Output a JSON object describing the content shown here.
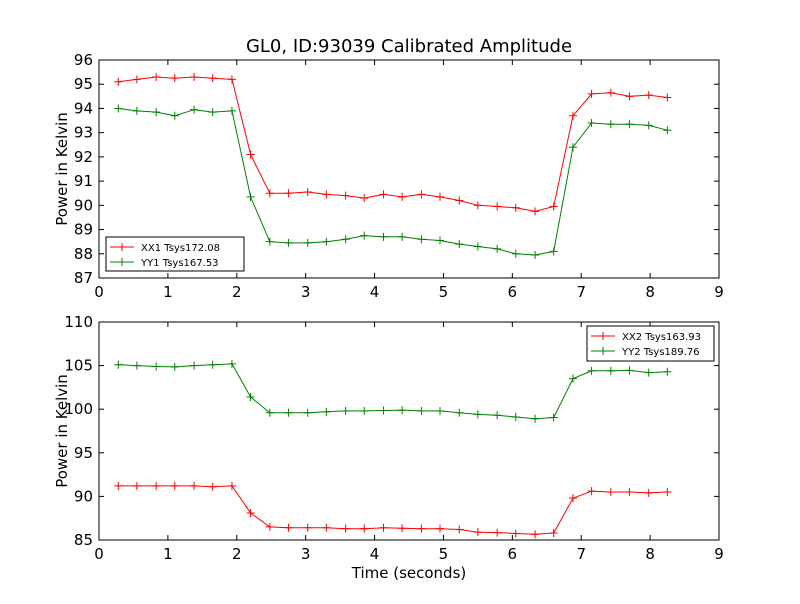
{
  "title": "GL0, ID:93039 Calibrated Amplitude",
  "colors": {
    "red": "#ff0000",
    "green": "#008000",
    "frame": "#000000",
    "background": "#ffffff"
  },
  "chart_data": [
    {
      "type": "line",
      "ylabel": "Power in Kelvin",
      "xlabel": "",
      "xlim": [
        0,
        9
      ],
      "ylim": [
        87,
        96
      ],
      "xticks": [
        "0",
        "1",
        "2",
        "3",
        "4",
        "5",
        "6",
        "7",
        "8",
        "9"
      ],
      "yticks": [
        "87",
        "88",
        "89",
        "90",
        "91",
        "92",
        "93",
        "94",
        "95",
        "96"
      ],
      "legend": "lower-left",
      "grid": false,
      "x": [
        0.28,
        0.55,
        0.83,
        1.1,
        1.38,
        1.65,
        1.93,
        2.2,
        2.48,
        2.75,
        3.03,
        3.3,
        3.58,
        3.85,
        4.13,
        4.4,
        4.68,
        4.95,
        5.23,
        5.5,
        5.78,
        6.05,
        6.33,
        6.6,
        6.88,
        7.15,
        7.43,
        7.7,
        7.98,
        8.25
      ],
      "series": [
        {
          "name": "XX1 Tsys172.08",
          "color": "#ff0000",
          "values": [
            95.1,
            95.2,
            95.3,
            95.25,
            95.3,
            95.25,
            95.2,
            92.1,
            90.5,
            90.5,
            90.55,
            90.45,
            90.4,
            90.3,
            90.45,
            90.35,
            90.45,
            90.35,
            90.2,
            90.0,
            89.95,
            89.9,
            89.75,
            89.95,
            93.7,
            94.6,
            94.65,
            94.5,
            94.55,
            94.45
          ]
        },
        {
          "name": "YY1 Tsys167.53",
          "color": "#008000",
          "values": [
            94.0,
            93.9,
            93.85,
            93.7,
            93.95,
            93.85,
            93.9,
            90.35,
            88.5,
            88.45,
            88.45,
            88.5,
            88.6,
            88.75,
            88.7,
            88.7,
            88.6,
            88.55,
            88.4,
            88.3,
            88.2,
            88.0,
            87.95,
            88.1,
            92.4,
            93.4,
            93.35,
            93.35,
            93.3,
            93.1
          ]
        }
      ]
    },
    {
      "type": "line",
      "ylabel": "Power in Kelvin",
      "xlabel": "Time (seconds)",
      "xlim": [
        0,
        9
      ],
      "ylim": [
        85,
        110
      ],
      "xticks": [
        "0",
        "1",
        "2",
        "3",
        "4",
        "5",
        "6",
        "7",
        "8",
        "9"
      ],
      "yticks": [
        "85",
        "90",
        "95",
        "100",
        "105",
        "110"
      ],
      "legend": "upper-right",
      "grid": false,
      "x": [
        0.28,
        0.55,
        0.83,
        1.1,
        1.38,
        1.65,
        1.93,
        2.2,
        2.48,
        2.75,
        3.03,
        3.3,
        3.58,
        3.85,
        4.13,
        4.4,
        4.68,
        4.95,
        5.23,
        5.5,
        5.78,
        6.05,
        6.33,
        6.6,
        6.88,
        7.15,
        7.43,
        7.7,
        7.98,
        8.25
      ],
      "series": [
        {
          "name": "XX2 Tsys163.93",
          "color": "#ff0000",
          "values": [
            91.2,
            91.2,
            91.2,
            91.2,
            91.2,
            91.1,
            91.2,
            88.1,
            86.5,
            86.4,
            86.4,
            86.4,
            86.3,
            86.3,
            86.4,
            86.35,
            86.3,
            86.3,
            86.2,
            85.9,
            85.85,
            85.75,
            85.65,
            85.8,
            89.8,
            90.6,
            90.5,
            90.5,
            90.4,
            90.5
          ]
        },
        {
          "name": "YY2 Tsys189.76",
          "color": "#008000",
          "values": [
            105.1,
            105.0,
            104.9,
            104.85,
            105.0,
            105.1,
            105.2,
            101.4,
            99.6,
            99.6,
            99.6,
            99.7,
            99.8,
            99.8,
            99.85,
            99.9,
            99.8,
            99.8,
            99.6,
            99.4,
            99.3,
            99.1,
            98.9,
            99.05,
            103.5,
            104.4,
            104.4,
            104.45,
            104.2,
            104.3
          ]
        }
      ]
    }
  ]
}
